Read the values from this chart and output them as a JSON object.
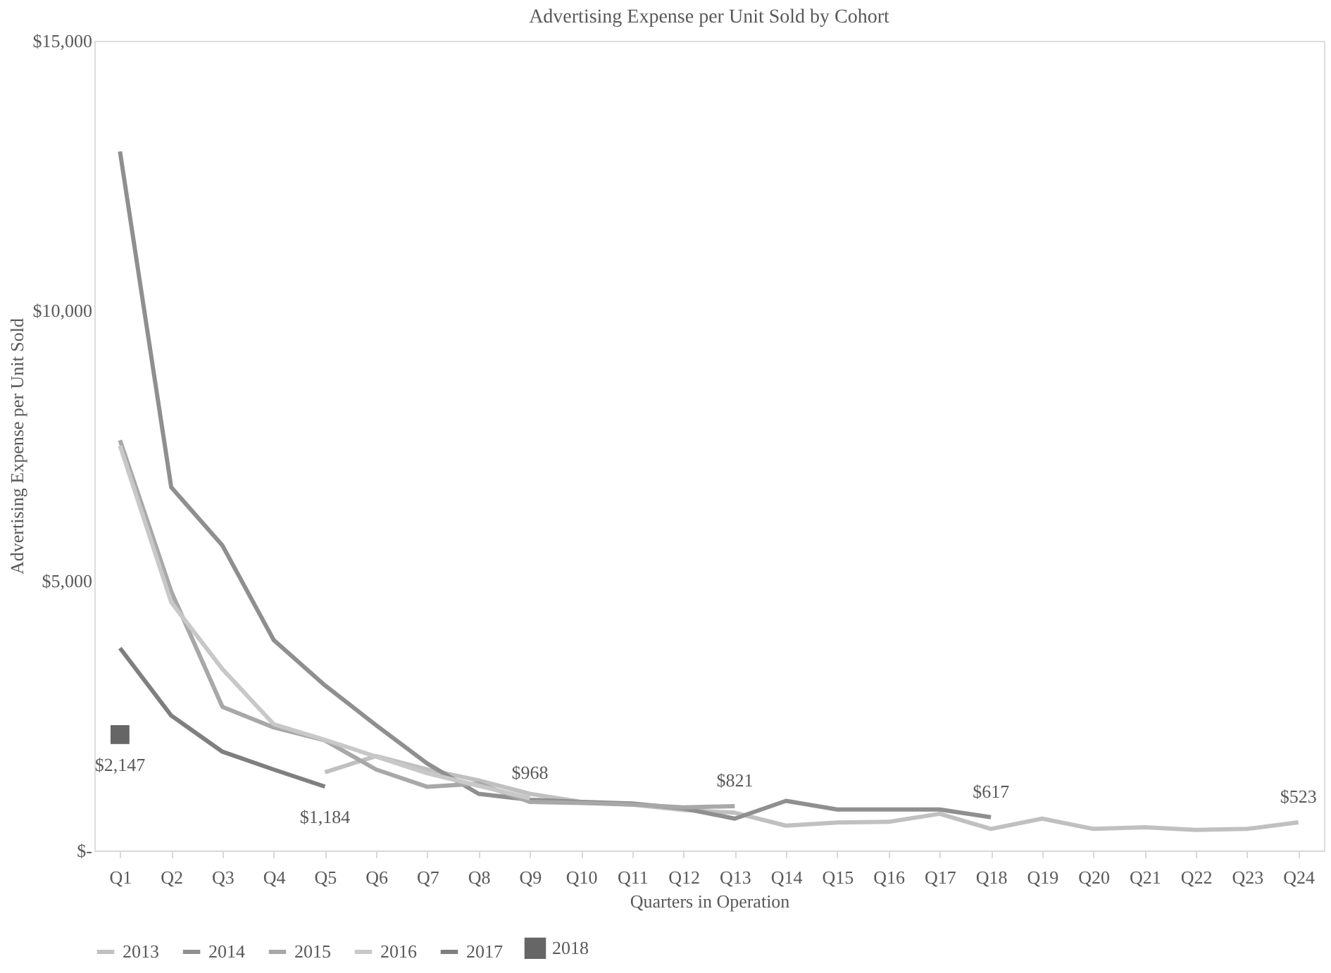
{
  "chart_data": {
    "type": "line",
    "title": "Advertising Expense per Unit Sold by Cohort",
    "xlabel": "Quarters in Operation",
    "ylabel": "Advertising Expense per Unit Sold",
    "categories": [
      "Q1",
      "Q2",
      "Q3",
      "Q4",
      "Q5",
      "Q6",
      "Q7",
      "Q8",
      "Q9",
      "Q10",
      "Q11",
      "Q12",
      "Q13",
      "Q14",
      "Q15",
      "Q16",
      "Q17",
      "Q18",
      "Q19",
      "Q20",
      "Q21",
      "Q22",
      "Q23",
      "Q24"
    ],
    "series": [
      {
        "name": "2013",
        "color": "#c0c0c0",
        "values": [
          null,
          null,
          null,
          null,
          1450,
          1750,
          1500,
          1300,
          1050,
          900,
          850,
          750,
          700,
          460,
          520,
          530,
          680,
          400,
          590,
          400,
          430,
          380,
          400,
          523
        ],
        "value_labels": [
          null,
          null,
          null,
          null,
          null,
          null,
          null,
          null,
          null,
          null,
          null,
          null,
          null,
          null,
          null,
          null,
          null,
          null,
          null,
          null,
          null,
          null,
          null,
          "$523"
        ]
      },
      {
        "name": "2014",
        "color": "#8f8f8f",
        "values": [
          12950,
          6730,
          5650,
          3900,
          3060,
          2320,
          1610,
          1050,
          940,
          900,
          870,
          780,
          590,
          920,
          760,
          760,
          760,
          617,
          null,
          null,
          null,
          null,
          null,
          null
        ],
        "value_labels": [
          null,
          null,
          null,
          null,
          null,
          null,
          null,
          null,
          null,
          null,
          null,
          null,
          null,
          null,
          null,
          null,
          null,
          "$617",
          null,
          null,
          null,
          null,
          null,
          null
        ]
      },
      {
        "name": "2015",
        "color": "#a8a8a8",
        "values": [
          7600,
          4800,
          2660,
          2280,
          2040,
          1500,
          1180,
          1240,
          900,
          880,
          850,
          800,
          821,
          null,
          null,
          null,
          null,
          null,
          null,
          null,
          null,
          null,
          null,
          null
        ],
        "value_labels": [
          null,
          null,
          null,
          null,
          null,
          null,
          null,
          null,
          null,
          null,
          null,
          null,
          "$821",
          null,
          null,
          null,
          null,
          null,
          null,
          null,
          null,
          null,
          null,
          null
        ]
      },
      {
        "name": "2016",
        "color": "#c8c8c8",
        "values": [
          7500,
          4600,
          3360,
          2340,
          2050,
          1740,
          1430,
          1200,
          968,
          null,
          null,
          null,
          null,
          null,
          null,
          null,
          null,
          null,
          null,
          null,
          null,
          null,
          null,
          null
        ],
        "value_labels": [
          null,
          null,
          null,
          null,
          null,
          null,
          null,
          null,
          "$968",
          null,
          null,
          null,
          null,
          null,
          null,
          null,
          null,
          null,
          null,
          null,
          null,
          null,
          null,
          null
        ]
      },
      {
        "name": "2017",
        "color": "#7f7f7f",
        "values": [
          3750,
          2500,
          1830,
          1500,
          1184,
          null,
          null,
          null,
          null,
          null,
          null,
          null,
          null,
          null,
          null,
          null,
          null,
          null,
          null,
          null,
          null,
          null,
          null,
          null
        ],
        "value_labels": [
          null,
          null,
          null,
          null,
          "$1,184",
          null,
          null,
          null,
          null,
          null,
          null,
          null,
          null,
          null,
          null,
          null,
          null,
          null,
          null,
          null,
          null,
          null,
          null,
          null
        ]
      },
      {
        "name": "2018",
        "color": "#666666",
        "type": "scatter",
        "marker": "square",
        "values": [
          2147,
          null,
          null,
          null,
          null,
          null,
          null,
          null,
          null,
          null,
          null,
          null,
          null,
          null,
          null,
          null,
          null,
          null,
          null,
          null,
          null,
          null,
          null,
          null
        ],
        "value_labels": [
          "$2,147",
          null,
          null,
          null,
          null,
          null,
          null,
          null,
          null,
          null,
          null,
          null,
          null,
          null,
          null,
          null,
          null,
          null,
          null,
          null,
          null,
          null,
          null,
          null
        ]
      }
    ],
    "ylim": [
      0,
      15000
    ],
    "yticks": [
      {
        "value": 0,
        "label": "$-"
      },
      {
        "value": 5000,
        "label": "$5,000"
      },
      {
        "value": 10000,
        "label": "$10,000"
      },
      {
        "value": 15000,
        "label": "$15,000"
      }
    ],
    "grid": false,
    "legend": "bottom",
    "line_style": "solid"
  }
}
